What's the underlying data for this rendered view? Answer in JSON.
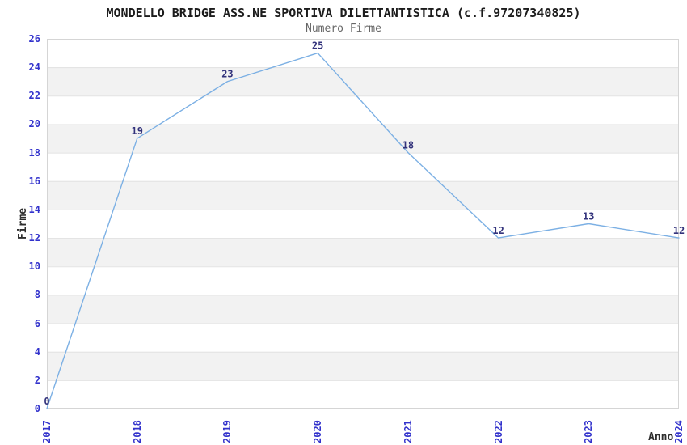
{
  "chart_data": {
    "type": "line",
    "title": "MONDELLO BRIDGE ASS.NE SPORTIVA DILETTANTISTICA (c.f.97207340825)",
    "subtitle": "Numero Firme",
    "xlabel": "Anno",
    "ylabel": "Firme",
    "categories": [
      "2017",
      "2018",
      "2019",
      "2020",
      "2021",
      "2022",
      "2023",
      "2024"
    ],
    "series": [
      {
        "name": "Numero Firme",
        "values": [
          0,
          19,
          23,
          25,
          18,
          12,
          13,
          12
        ]
      }
    ],
    "ylim": [
      0,
      26
    ],
    "ytick_step": 2,
    "grid": "horizontal-bands-alternating",
    "legend": "none",
    "point_labels_visible": true,
    "colors": {
      "line": "#7cb0e4",
      "tick_label": "#3232cc",
      "point_label": "#33337c",
      "band": "#f2f2f2",
      "gridline": "#e2e2e2",
      "border": "#d5d5d5",
      "title": "#1c1c1c",
      "subtitle": "#666666",
      "axis_label": "#2e2e2e"
    }
  }
}
